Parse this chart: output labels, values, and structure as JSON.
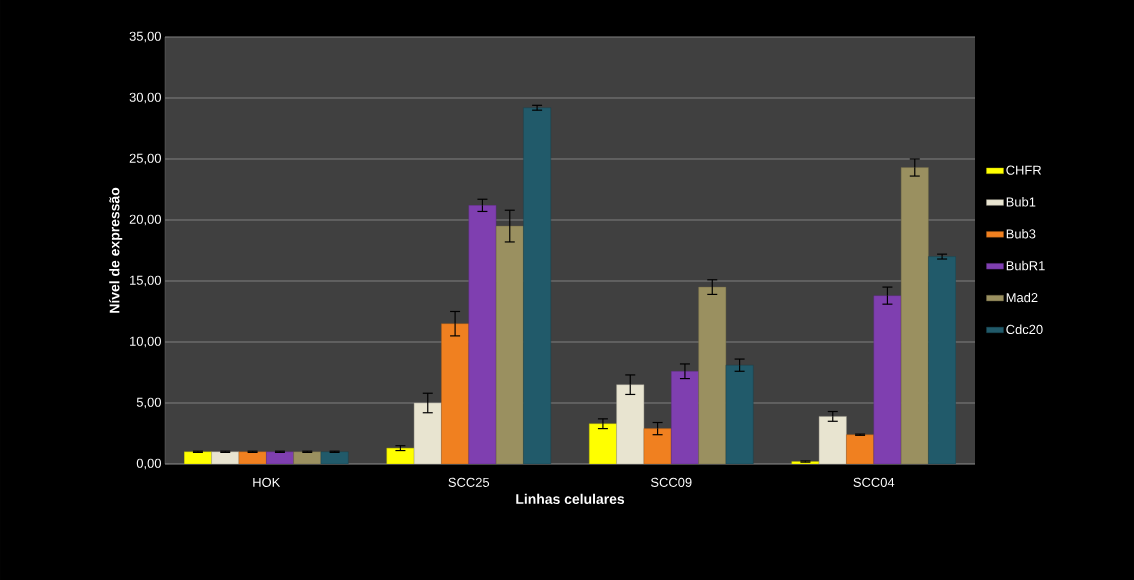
{
  "chart_data": {
    "type": "bar",
    "xlabel": "Linhas celulares",
    "ylabel": "Nível de expressão",
    "categories": [
      "HOK",
      "SCC25",
      "SCC09",
      "SCC04"
    ],
    "series": [
      {
        "name": "CHFR",
        "color": "#ffff00",
        "values": [
          1.0,
          1.3,
          3.3,
          0.2
        ],
        "errors": [
          0.05,
          0.2,
          0.4,
          0.05
        ]
      },
      {
        "name": "Bub1",
        "color": "#e8e4d0",
        "values": [
          1.0,
          5.0,
          6.5,
          3.9
        ],
        "errors": [
          0.05,
          0.8,
          0.8,
          0.4
        ]
      },
      {
        "name": "Bub3",
        "color": "#f08020",
        "values": [
          1.0,
          11.5,
          2.9,
          2.4
        ],
        "errors": [
          0.05,
          1.0,
          0.5,
          0.05
        ]
      },
      {
        "name": "BubR1",
        "color": "#7f3fb0",
        "values": [
          1.0,
          21.2,
          7.6,
          13.8
        ],
        "errors": [
          0.05,
          0.5,
          0.6,
          0.7
        ]
      },
      {
        "name": "Mad2",
        "color": "#9a9060",
        "values": [
          1.0,
          19.5,
          14.5,
          24.3
        ],
        "errors": [
          0.05,
          1.3,
          0.6,
          0.7
        ]
      },
      {
        "name": "Cdc20",
        "color": "#215a6a",
        "values": [
          1.0,
          29.2,
          8.1,
          17.0
        ],
        "errors": [
          0.05,
          0.2,
          0.5,
          0.2
        ]
      }
    ],
    "ylim": [
      0,
      35
    ],
    "yticks": [
      {
        "value": 0,
        "label": "0,00"
      },
      {
        "value": 5,
        "label": "5,00"
      },
      {
        "value": 10,
        "label": "10,00"
      },
      {
        "value": 15,
        "label": "15,00"
      },
      {
        "value": 20,
        "label": "20,00"
      },
      {
        "value": 25,
        "label": "25,00"
      },
      {
        "value": 30,
        "label": "30,00"
      },
      {
        "value": 35,
        "label": "35,00"
      }
    ],
    "grid": "y",
    "legend": "right"
  }
}
